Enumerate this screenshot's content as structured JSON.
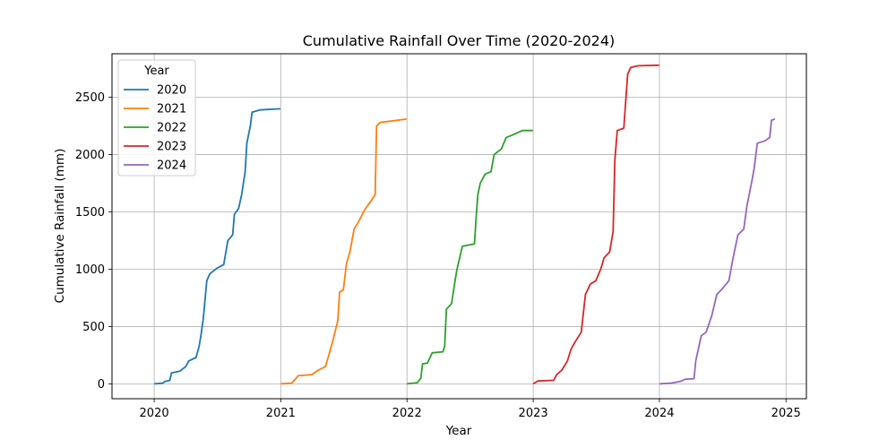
{
  "chart_data": {
    "type": "line",
    "title": "Cumulative Rainfall Over Time (2020-2024)",
    "xlabel": "Year",
    "ylabel": "Cumulative Rainfall (mm)",
    "xlim": [
      "2019-09-01",
      "2025-03-01"
    ],
    "ylim": [
      -130,
      2880
    ],
    "x_ticks": [
      {
        "date": "2020-01-01",
        "label": "2020"
      },
      {
        "date": "2021-01-01",
        "label": "2021"
      },
      {
        "date": "2022-01-01",
        "label": "2022"
      },
      {
        "date": "2023-01-01",
        "label": "2023"
      },
      {
        "date": "2024-01-01",
        "label": "2024"
      },
      {
        "date": "2025-01-01",
        "label": "2025"
      }
    ],
    "y_ticks": [
      0,
      500,
      1000,
      1500,
      2000,
      2500
    ],
    "grid": true,
    "legend": {
      "title": "Year",
      "placement": "upper-left"
    },
    "series": [
      {
        "name": "2020",
        "color": "#1f77b4",
        "points": [
          [
            "2020-01-01",
            0
          ],
          [
            "2020-01-25",
            5
          ],
          [
            "2020-02-01",
            20
          ],
          [
            "2020-02-15",
            30
          ],
          [
            "2020-02-20",
            95
          ],
          [
            "2020-03-15",
            110
          ],
          [
            "2020-04-01",
            150
          ],
          [
            "2020-04-10",
            200
          ],
          [
            "2020-05-01",
            230
          ],
          [
            "2020-05-10",
            330
          ],
          [
            "2020-05-15",
            420
          ],
          [
            "2020-05-22",
            570
          ],
          [
            "2020-06-01",
            900
          ],
          [
            "2020-06-10",
            960
          ],
          [
            "2020-07-01",
            1010
          ],
          [
            "2020-07-20",
            1040
          ],
          [
            "2020-08-01",
            1250
          ],
          [
            "2020-08-15",
            1300
          ],
          [
            "2020-08-20",
            1480
          ],
          [
            "2020-09-01",
            1530
          ],
          [
            "2020-09-10",
            1650
          ],
          [
            "2020-09-20",
            1850
          ],
          [
            "2020-09-25",
            2100
          ],
          [
            "2020-10-05",
            2250
          ],
          [
            "2020-10-10",
            2370
          ],
          [
            "2020-11-01",
            2390
          ],
          [
            "2020-12-31",
            2400
          ]
        ]
      },
      {
        "name": "2021",
        "color": "#ff7f0e",
        "points": [
          [
            "2021-01-01",
            0
          ],
          [
            "2021-02-01",
            5
          ],
          [
            "2021-02-15",
            50
          ],
          [
            "2021-02-20",
            70
          ],
          [
            "2021-04-01",
            80
          ],
          [
            "2021-04-20",
            120
          ],
          [
            "2021-05-10",
            150
          ],
          [
            "2021-05-20",
            250
          ],
          [
            "2021-06-01",
            380
          ],
          [
            "2021-06-15",
            550
          ],
          [
            "2021-06-20",
            800
          ],
          [
            "2021-07-01",
            820
          ],
          [
            "2021-07-10",
            1050
          ],
          [
            "2021-07-20",
            1150
          ],
          [
            "2021-08-01",
            1350
          ],
          [
            "2021-08-15",
            1420
          ],
          [
            "2021-09-01",
            1520
          ],
          [
            "2021-09-20",
            1600
          ],
          [
            "2021-10-01",
            1650
          ],
          [
            "2021-10-05",
            2250
          ],
          [
            "2021-10-15",
            2280
          ],
          [
            "2021-12-31",
            2310
          ]
        ]
      },
      {
        "name": "2022",
        "color": "#2ca02c",
        "points": [
          [
            "2022-01-01",
            0
          ],
          [
            "2022-01-31",
            10
          ],
          [
            "2022-02-10",
            50
          ],
          [
            "2022-02-15",
            175
          ],
          [
            "2022-03-01",
            180
          ],
          [
            "2022-03-15",
            270
          ],
          [
            "2022-04-15",
            280
          ],
          [
            "2022-04-20",
            330
          ],
          [
            "2022-04-25",
            650
          ],
          [
            "2022-05-10",
            700
          ],
          [
            "2022-05-20",
            900
          ],
          [
            "2022-05-25",
            990
          ],
          [
            "2022-06-10",
            1200
          ],
          [
            "2022-07-15",
            1220
          ],
          [
            "2022-07-20",
            1450
          ],
          [
            "2022-07-25",
            1650
          ],
          [
            "2022-08-01",
            1750
          ],
          [
            "2022-08-15",
            1830
          ],
          [
            "2022-09-01",
            1850
          ],
          [
            "2022-09-10",
            2000
          ],
          [
            "2022-10-01",
            2050
          ],
          [
            "2022-10-15",
            2150
          ],
          [
            "2022-11-01",
            2170
          ],
          [
            "2022-12-01",
            2210
          ],
          [
            "2022-12-31",
            2210
          ]
        ]
      },
      {
        "name": "2023",
        "color": "#d62728",
        "points": [
          [
            "2023-01-01",
            0
          ],
          [
            "2023-01-15",
            25
          ],
          [
            "2023-03-01",
            30
          ],
          [
            "2023-03-10",
            80
          ],
          [
            "2023-03-25",
            120
          ],
          [
            "2023-04-10",
            200
          ],
          [
            "2023-04-20",
            300
          ],
          [
            "2023-05-01",
            360
          ],
          [
            "2023-05-20",
            450
          ],
          [
            "2023-06-01",
            780
          ],
          [
            "2023-06-15",
            870
          ],
          [
            "2023-07-01",
            900
          ],
          [
            "2023-07-15",
            1000
          ],
          [
            "2023-07-25",
            1100
          ],
          [
            "2023-08-10",
            1150
          ],
          [
            "2023-08-20",
            1330
          ],
          [
            "2023-08-25",
            1950
          ],
          [
            "2023-09-01",
            2210
          ],
          [
            "2023-09-20",
            2230
          ],
          [
            "2023-10-01",
            2700
          ],
          [
            "2023-10-10",
            2760
          ],
          [
            "2023-11-01",
            2775
          ],
          [
            "2023-12-31",
            2780
          ]
        ]
      },
      {
        "name": "2024",
        "color": "#9467bd",
        "points": [
          [
            "2024-01-01",
            0
          ],
          [
            "2024-02-01",
            5
          ],
          [
            "2024-03-01",
            20
          ],
          [
            "2024-03-15",
            40
          ],
          [
            "2024-04-10",
            45
          ],
          [
            "2024-04-15",
            200
          ],
          [
            "2024-05-01",
            420
          ],
          [
            "2024-05-15",
            450
          ],
          [
            "2024-06-01",
            600
          ],
          [
            "2024-06-15",
            780
          ],
          [
            "2024-07-01",
            830
          ],
          [
            "2024-07-20",
            900
          ],
          [
            "2024-08-01",
            1100
          ],
          [
            "2024-08-15",
            1300
          ],
          [
            "2024-09-01",
            1350
          ],
          [
            "2024-09-10",
            1550
          ],
          [
            "2024-09-25",
            1780
          ],
          [
            "2024-10-01",
            1880
          ],
          [
            "2024-10-10",
            2100
          ],
          [
            "2024-11-01",
            2120
          ],
          [
            "2024-11-15",
            2150
          ],
          [
            "2024-11-20",
            2300
          ],
          [
            "2024-11-30",
            2310
          ]
        ]
      }
    ]
  }
}
